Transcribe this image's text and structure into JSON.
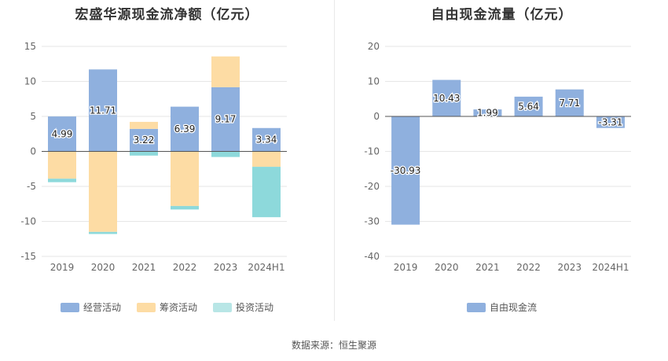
{
  "source": "数据来源：恒生聚源",
  "chart_data": [
    {
      "type": "bar",
      "stacked": true,
      "title": "宏盛华源现金流净额（亿元）",
      "categories": [
        "2019",
        "2020",
        "2021",
        "2022",
        "2023",
        "2024H1"
      ],
      "ylim": [
        -15,
        15
      ],
      "yticks": [
        15,
        10,
        5,
        0,
        -5,
        -10,
        -15
      ],
      "grid": true,
      "legend_position": "bottom",
      "series": [
        {
          "name": "经营活动",
          "color": "#8fb0de",
          "values": [
            4.99,
            11.71,
            3.22,
            6.39,
            9.17,
            3.34
          ]
        },
        {
          "name": "筹资活动",
          "color": "#fddca4",
          "values": [
            -3.9,
            -11.5,
            1.0,
            -7.8,
            4.4,
            -2.2
          ]
        },
        {
          "name": "投资活动",
          "color": "#8dd9db",
          "values": [
            -0.5,
            -0.3,
            -0.6,
            -0.5,
            -0.8,
            -7.2
          ]
        }
      ],
      "data_labels": [
        "4.99",
        "11.71",
        "3.22",
        "6.39",
        "9.17",
        "3.34"
      ]
    },
    {
      "type": "bar",
      "title": "自由现金流量（亿元）",
      "categories": [
        "2019",
        "2020",
        "2021",
        "2022",
        "2023",
        "2024H1"
      ],
      "ylim": [
        -40,
        20
      ],
      "yticks": [
        20,
        10,
        0,
        -10,
        -20,
        -30,
        -40
      ],
      "grid": true,
      "legend_position": "bottom",
      "series": [
        {
          "name": "自由现金流",
          "color": "#8fb0de",
          "values": [
            -30.93,
            10.43,
            1.99,
            5.64,
            7.71,
            -3.31
          ]
        }
      ],
      "data_labels": [
        "-30.93",
        "10.43",
        "1.99",
        "5.64",
        "7.71",
        "-3.31"
      ]
    }
  ]
}
